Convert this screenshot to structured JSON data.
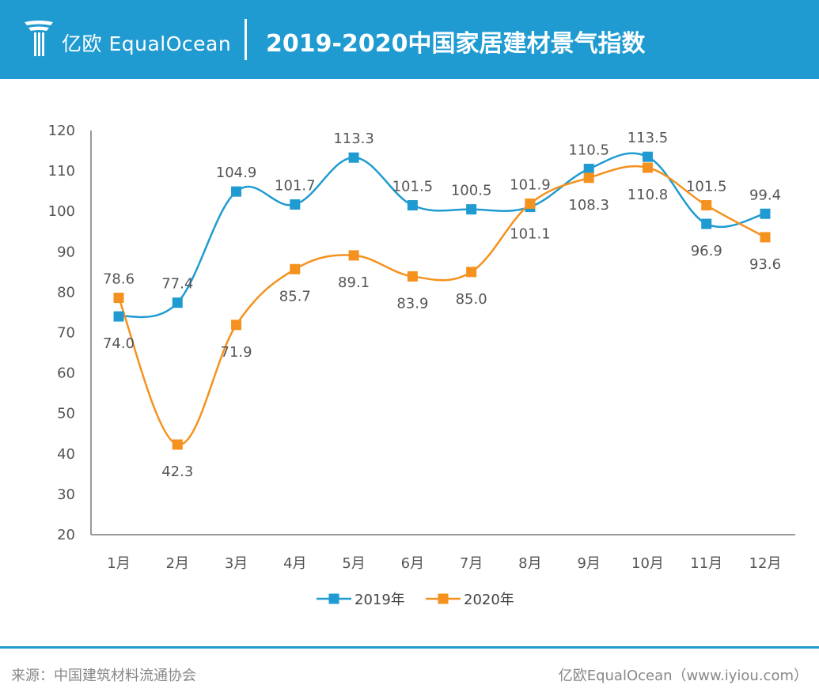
{
  "header": {
    "logo_text": "亿欧 EqualOcean",
    "title": "2019-2020中国家居建材景气指数"
  },
  "colors": {
    "header_bg": "#1f9bd1",
    "series_2019": "#1f9bd1",
    "series_2020": "#f5911e"
  },
  "chart_data": {
    "type": "line",
    "title": "2019-2020中国家居建材景气指数",
    "categories": [
      "1月",
      "2月",
      "3月",
      "4月",
      "5月",
      "6月",
      "7月",
      "8月",
      "9月",
      "10月",
      "11月",
      "12月"
    ],
    "ylim": [
      20,
      120
    ],
    "yticks": [
      "20",
      "30",
      "40",
      "50",
      "60",
      "70",
      "80",
      "90",
      "100",
      "110",
      "120"
    ],
    "grid": false,
    "legend_position": "bottom",
    "smooth": true,
    "series": [
      {
        "name": "2019年",
        "values": [
          74.0,
          77.4,
          104.9,
          101.7,
          113.3,
          101.5,
          100.5,
          101.1,
          110.5,
          113.5,
          96.9,
          99.4
        ],
        "labels": [
          "74.0",
          "77.4",
          "104.9",
          "101.7",
          "113.3",
          "101.5",
          "100.5",
          "101.1",
          "110.5",
          "113.5",
          "96.9",
          "99.4"
        ]
      },
      {
        "name": "2020年",
        "values": [
          78.6,
          42.3,
          71.9,
          85.7,
          89.1,
          83.9,
          85.0,
          101.9,
          108.3,
          110.8,
          101.5,
          93.6
        ],
        "labels": [
          "78.6",
          "42.3",
          "71.9",
          "85.7",
          "89.1",
          "83.9",
          "85.0",
          "101.9",
          "108.3",
          "110.8",
          "101.5",
          "93.6"
        ]
      }
    ]
  },
  "footer": {
    "source": "来源：中国建筑材料流通协会",
    "brand": "亿欧EqualOcean（www.iyiou.com）"
  }
}
